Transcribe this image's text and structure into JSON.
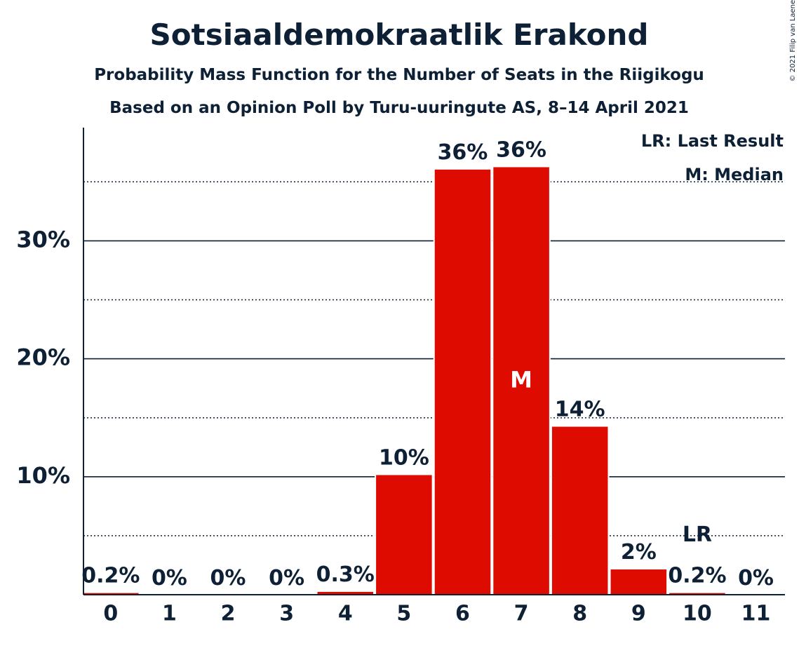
{
  "chart_data": {
    "type": "bar",
    "title": "Sotsiaaldemokraatlik Erakond",
    "subtitle1": "Probability Mass Function for the Number of Seats in the Riigikogu",
    "subtitle2": "Based on an Opinion Poll by Turu-uuringute AS, 8–14 April 2021",
    "copyright": "© 2021 Filip van Laenen",
    "legend": {
      "last_result": "LR: Last Result",
      "median": "M: Median",
      "position": "top-right"
    },
    "categories": [
      "0",
      "1",
      "2",
      "3",
      "4",
      "5",
      "6",
      "7",
      "8",
      "9",
      "10",
      "11"
    ],
    "values": [
      0.2,
      0,
      0,
      0,
      0.3,
      10.2,
      36.1,
      36.3,
      14.3,
      2.2,
      0.2,
      0
    ],
    "value_labels": [
      "0.2%",
      "0%",
      "0%",
      "0%",
      "0.3%",
      "10%",
      "36%",
      "36%",
      "14%",
      "2%",
      "0.2%",
      "0%"
    ],
    "y_ticks": [
      {
        "value": 10,
        "label": "10%"
      },
      {
        "value": 20,
        "label": "20%"
      },
      {
        "value": 30,
        "label": "30%"
      }
    ],
    "ylim": [
      0,
      39.5
    ],
    "minor_gridlines": [
      5,
      15,
      25,
      35
    ],
    "median_category": "7",
    "median_marker": "M",
    "last_result_category": "10",
    "last_result_marker": "LR",
    "bar_color": "#dd0b00",
    "text_color": "#0d2035",
    "xlabel": "",
    "ylabel": ""
  }
}
